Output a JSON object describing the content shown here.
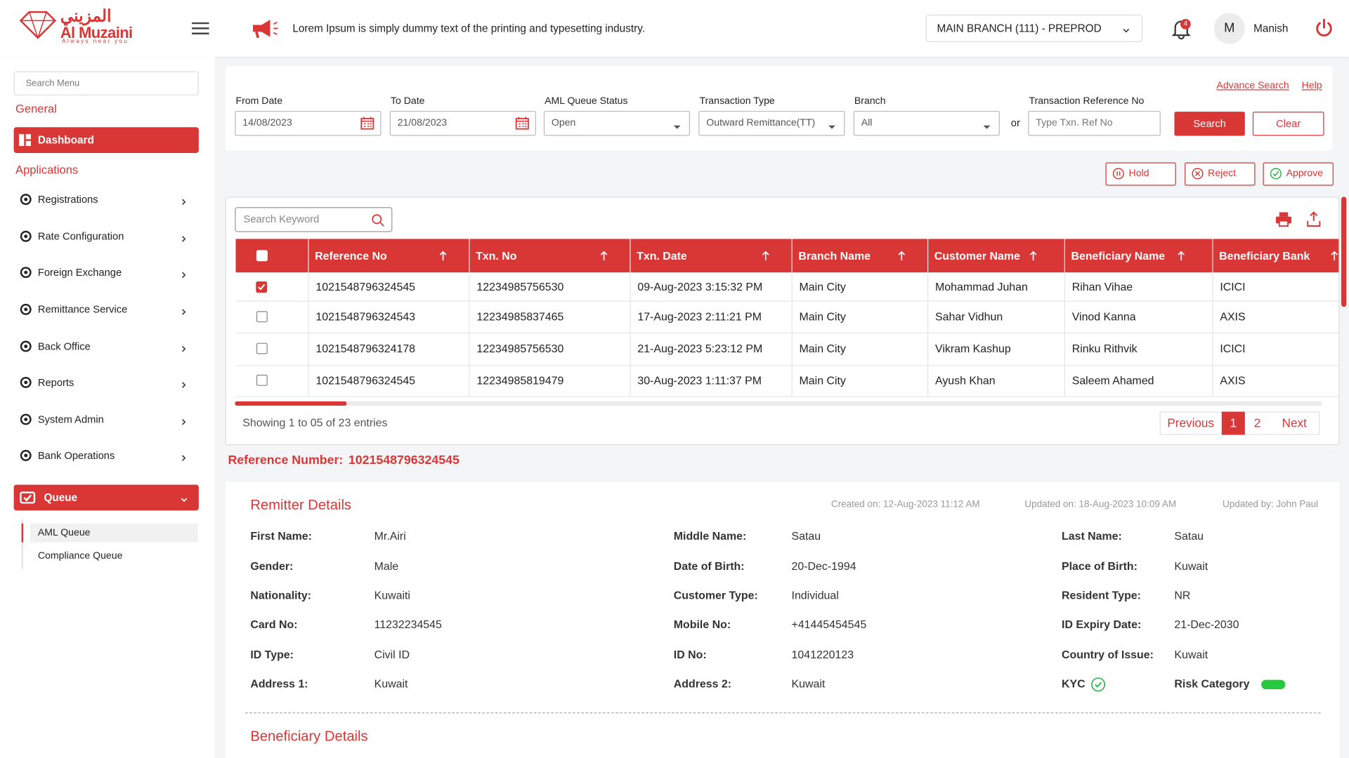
{
  "header": {
    "logo_arabic": "المزيني",
    "logo_name": "Al Muzaini",
    "logo_tagline": "Always near you",
    "announcement": "Lorem Ipsum is simply dummy text of the printing and typesetting industry.",
    "branch": "MAIN BRANCH (111) - PREPROD",
    "notification_count": "4",
    "user_initial": "M",
    "user_name": "Manish"
  },
  "sidebar": {
    "search_placeholder": "Search Menu",
    "general_heading": "General",
    "dashboard": "Dashboard",
    "applications_heading": "Applications",
    "menu": [
      "Registrations",
      "Rate Configuration",
      "Foreign Exchange",
      "Remittance Service",
      "Back Office",
      "Reports",
      "System Admin",
      "Bank Operations"
    ],
    "queue": "Queue",
    "queue_items": [
      "AML Queue",
      "Compliance Queue"
    ]
  },
  "filters": {
    "advance_search": "Advance Search",
    "help": "Help",
    "fields": [
      {
        "label": "From Date",
        "value": "14/08/2023"
      },
      {
        "label": "To Date",
        "value": "21/08/2023"
      },
      {
        "label": "AML Queue Status",
        "value": "Open"
      },
      {
        "label": "Transaction Type",
        "value": "Outward Remittance(TT)"
      },
      {
        "label": "Branch",
        "value": "All"
      }
    ],
    "or": "or",
    "ref_label": "Transaction Reference No",
    "ref_placeholder": "Type Txn. Ref No",
    "search": "Search",
    "clear": "Clear"
  },
  "actions": {
    "hold": "Hold",
    "reject": "Reject",
    "approve": "Approve"
  },
  "table": {
    "search_placeholder": "Search Keyword",
    "columns": [
      "Reference No",
      "Txn. No",
      "Txn. Date",
      "Branch Name",
      "Customer Name",
      "Beneficiary Name",
      "Beneficiary Bank"
    ],
    "rows": [
      [
        "1021548796324545",
        "12234985756530",
        "09-Aug-2023 3:15:32 PM",
        "Main City",
        "Mohammad Juhan",
        "Rihan Vihae",
        "ICICI"
      ],
      [
        "1021548796324543",
        "12234985837465",
        "17-Aug-2023 2:11:21 PM",
        "Main City",
        "Sahar Vidhun",
        "Vinod Kanna",
        "AXIS"
      ],
      [
        "1021548796324178",
        "12234985756530",
        "21-Aug-2023 5:23:12 PM",
        "Main City",
        "Vikram Kashup",
        "Rinku Rithvik",
        "ICICI"
      ],
      [
        "1021548796324545",
        "12234985819479",
        "30-Aug-2023 1:11:37 PM",
        "Main City",
        "Ayush Khan",
        "Saleem Ahamed",
        "AXIS"
      ]
    ],
    "selected": [
      true,
      false,
      false,
      false
    ],
    "showing": "Showing 1 to 05 of 23 entries",
    "previous": "Previous",
    "pages": [
      "1",
      "2"
    ],
    "next": "Next"
  },
  "reference": {
    "label": "Reference Number:",
    "value": "1021548796324545"
  },
  "remitter": {
    "title": "Remitter Details",
    "created": "Created on: 12-Aug-2023 11:12 AM",
    "updated": "Updated on: 18-Aug-2023 10:09 AM",
    "updated_by": "Updated by: John Paul",
    "rows": [
      [
        {
          "label": "First Name:",
          "value": "Mr.Airi"
        },
        {
          "label": "Middle Name:",
          "value": "Satau"
        },
        {
          "label": "Last Name:",
          "value": "Satau"
        }
      ],
      [
        {
          "label": "Gender:",
          "value": "Male"
        },
        {
          "label": "Date of Birth:",
          "value": "20-Dec-1994"
        },
        {
          "label": "Place of Birth:",
          "value": "Kuwait"
        }
      ],
      [
        {
          "label": "Nationality:",
          "value": "Kuwaiti"
        },
        {
          "label": "Customer Type:",
          "value": "Individual"
        },
        {
          "label": "Resident Type:",
          "value": "NR"
        }
      ],
      [
        {
          "label": "Card No:",
          "value": "11232234545"
        },
        {
          "label": "Mobile No:",
          "value": "+41445454545"
        },
        {
          "label": "ID Expiry Date:",
          "value": "21-Dec-2030"
        }
      ],
      [
        {
          "label": "ID Type:",
          "value": "Civil ID"
        },
        {
          "label": "ID No:",
          "value": "1041220123"
        },
        {
          "label": "Country of Issue:",
          "value": "Kuwait"
        }
      ],
      [
        {
          "label": "Address 1:",
          "value": "Kuwait"
        },
        {
          "label": "Address 2:",
          "value": "Kuwait"
        },
        {
          "label": "KYC"
        }
      ]
    ],
    "risk_label": "Risk Category"
  },
  "beneficiary": {
    "title": "Beneficiary Details"
  }
}
